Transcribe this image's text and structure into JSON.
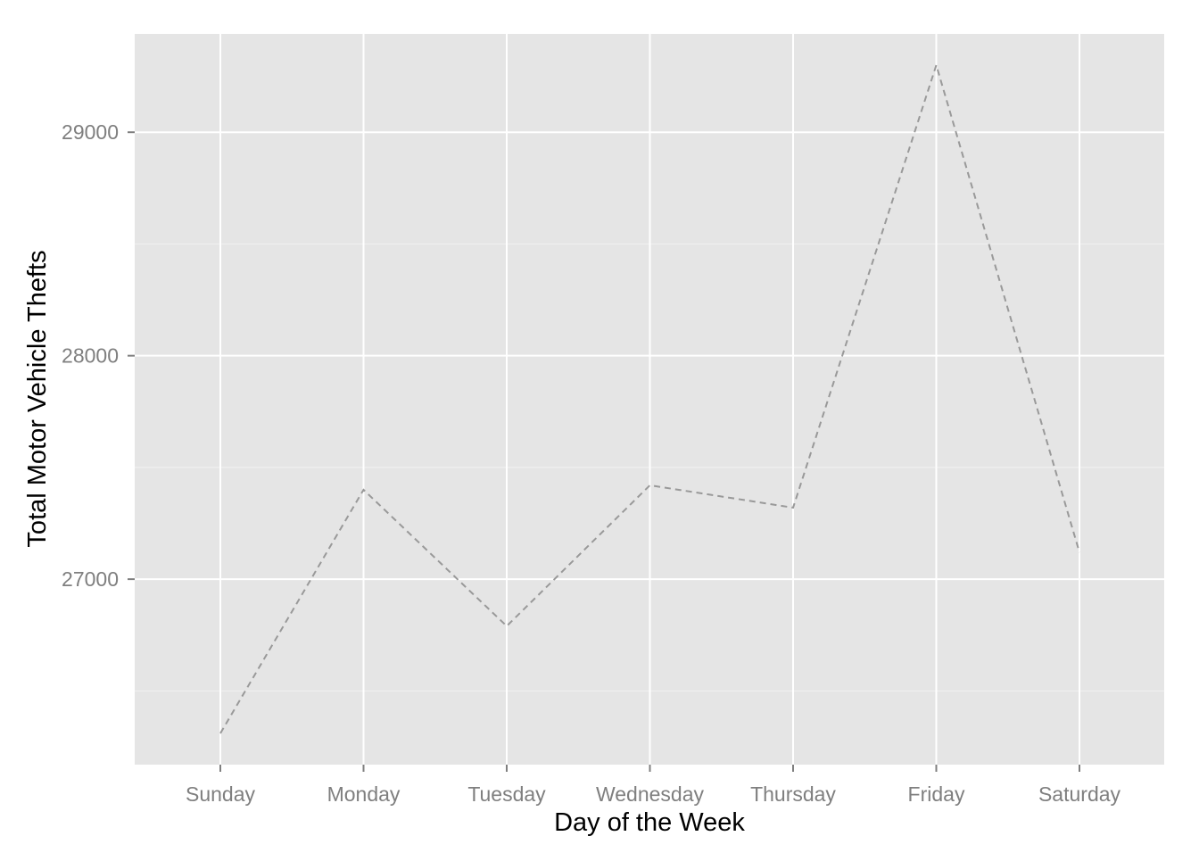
{
  "chart_data": {
    "type": "line",
    "title": "",
    "xlabel": "Day of the Week",
    "ylabel": "Total Motor Vehicle Thefts",
    "categories": [
      "Sunday",
      "Monday",
      "Tuesday",
      "Wednesday",
      "Thursday",
      "Friday",
      "Saturday"
    ],
    "series": [
      {
        "values": [
          26310,
          27400,
          26790,
          27420,
          27320,
          29300,
          27120
        ],
        "color": "#999999",
        "linestyle": "dashed"
      }
    ],
    "ylim": [
      26170,
      29440
    ],
    "yticks": [
      27000,
      28000,
      29000
    ],
    "y_minor_ticks": [
      26500,
      27500,
      28500
    ],
    "grid": true,
    "legend": "none",
    "panel_background": "#e5e5e5",
    "gridline_color": "#ffffff"
  }
}
